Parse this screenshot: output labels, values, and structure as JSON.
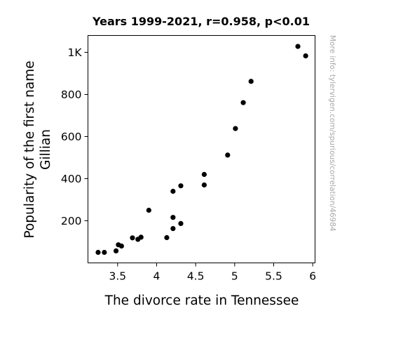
{
  "chart_data": {
    "type": "scatter",
    "title": "Years 1999-2021, r=0.958, p<0.01",
    "xlabel": "The divorce rate in Tennessee",
    "ylabel_lines": [
      "Popularity of the first name",
      "Gillian"
    ],
    "watermark": "More info: tylervigen.com/spurious/correlation/46984",
    "xlim": [
      3.12,
      6.03
    ],
    "ylim": [
      0,
      1080
    ],
    "x_ticks": [
      {
        "value": 3.5,
        "label": "3.5"
      },
      {
        "value": 4.0,
        "label": "4"
      },
      {
        "value": 4.5,
        "label": "4.5"
      },
      {
        "value": 5.0,
        "label": "5"
      },
      {
        "value": 5.5,
        "label": "5.5"
      },
      {
        "value": 6.0,
        "label": "6"
      }
    ],
    "y_ticks": [
      {
        "value": 200,
        "label": "200"
      },
      {
        "value": 400,
        "label": "400"
      },
      {
        "value": 600,
        "label": "600"
      },
      {
        "value": 800,
        "label": "800"
      },
      {
        "value": 1000,
        "label": "1K"
      }
    ],
    "marker_color": "#000000",
    "points": [
      {
        "x": 3.25,
        "y": 50
      },
      {
        "x": 3.33,
        "y": 50
      },
      {
        "x": 3.48,
        "y": 57
      },
      {
        "x": 3.51,
        "y": 86
      },
      {
        "x": 3.55,
        "y": 80
      },
      {
        "x": 3.69,
        "y": 119
      },
      {
        "x": 3.76,
        "y": 112
      },
      {
        "x": 3.8,
        "y": 122
      },
      {
        "x": 3.9,
        "y": 250
      },
      {
        "x": 4.13,
        "y": 120
      },
      {
        "x": 4.21,
        "y": 163
      },
      {
        "x": 4.21,
        "y": 216
      },
      {
        "x": 4.21,
        "y": 340
      },
      {
        "x": 4.31,
        "y": 187
      },
      {
        "x": 4.31,
        "y": 366
      },
      {
        "x": 4.61,
        "y": 370
      },
      {
        "x": 4.61,
        "y": 420
      },
      {
        "x": 4.91,
        "y": 512
      },
      {
        "x": 5.01,
        "y": 638
      },
      {
        "x": 5.11,
        "y": 761
      },
      {
        "x": 5.21,
        "y": 862
      },
      {
        "x": 5.81,
        "y": 1028
      },
      {
        "x": 5.91,
        "y": 983
      }
    ]
  }
}
